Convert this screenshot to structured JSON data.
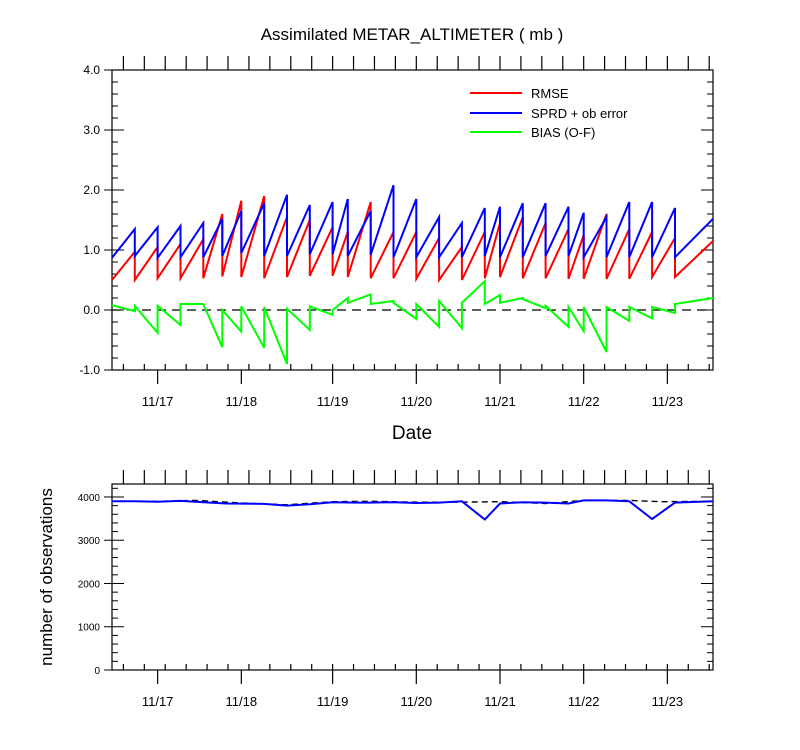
{
  "title": "Assimilated METAR_ALTIMETER ( mb )",
  "chart_data": [
    {
      "type": "line",
      "title": "Assimilated METAR_ALTIMETER ( mb )",
      "xlabel": "Date",
      "ylabel": "",
      "xlim": [
        0,
        79
      ],
      "ylim": [
        -1.0,
        4.0
      ],
      "yticks": [
        -1.0,
        0.0,
        1.0,
        2.0,
        3.0,
        4.0
      ],
      "yticklabels": [
        "-1.0",
        "0.0",
        "1.0",
        "2.0",
        "3.0",
        "4.0"
      ],
      "xticks": [
        6,
        17,
        29,
        40,
        51,
        62,
        73
      ],
      "xticklabels": [
        "11/17",
        "11/18",
        "11/19",
        "11/20",
        "11/21",
        "11/22",
        "11/23"
      ],
      "legend_position": "top-right",
      "zero_line": 0.0,
      "segments": [
        {
          "x": [
            0,
            3
          ],
          "rmse": [
            0.5,
            0.97
          ],
          "sprd": [
            0.87,
            1.35
          ],
          "bias": [
            0.08,
            -0.02
          ]
        },
        {
          "x": [
            3,
            6
          ],
          "rmse": [
            0.5,
            1.05
          ],
          "sprd": [
            0.9,
            1.38
          ],
          "bias": [
            0.07,
            -0.38
          ]
        },
        {
          "x": [
            6,
            9
          ],
          "rmse": [
            0.53,
            1.1
          ],
          "sprd": [
            0.87,
            1.4
          ],
          "bias": [
            0.07,
            -0.25
          ]
        },
        {
          "x": [
            9,
            12
          ],
          "rmse": [
            0.53,
            1.18
          ],
          "sprd": [
            0.88,
            1.45
          ],
          "bias": [
            0.1,
            0.1
          ]
        },
        {
          "x": [
            12,
            14.5
          ],
          "rmse": [
            0.53,
            1.6
          ],
          "sprd": [
            0.88,
            1.52
          ],
          "bias": [
            0.1,
            -0.62
          ]
        },
        {
          "x": [
            14.5,
            17
          ],
          "rmse": [
            0.56,
            1.82
          ],
          "sprd": [
            0.9,
            1.65
          ],
          "bias": [
            0.0,
            -0.36
          ]
        },
        {
          "x": [
            17,
            20
          ],
          "rmse": [
            0.55,
            1.9
          ],
          "sprd": [
            0.95,
            1.78
          ],
          "bias": [
            0.06,
            -0.63
          ]
        },
        {
          "x": [
            20,
            23
          ],
          "rmse": [
            0.53,
            1.55
          ],
          "sprd": [
            0.9,
            1.92
          ],
          "bias": [
            0.05,
            -0.9
          ]
        },
        {
          "x": [
            23,
            26
          ],
          "rmse": [
            0.55,
            1.5
          ],
          "sprd": [
            0.9,
            1.75
          ],
          "bias": [
            0.02,
            -0.33
          ]
        },
        {
          "x": [
            26,
            29
          ],
          "rmse": [
            0.57,
            1.38
          ],
          "sprd": [
            0.93,
            1.8
          ],
          "bias": [
            0.06,
            -0.08
          ]
        },
        {
          "x": [
            29,
            31
          ],
          "rmse": [
            0.57,
            1.3
          ],
          "sprd": [
            0.93,
            1.85
          ],
          "bias": [
            0.0,
            0.2
          ]
        },
        {
          "x": [
            31,
            34
          ],
          "rmse": [
            0.55,
            1.8
          ],
          "sprd": [
            0.9,
            1.65
          ],
          "bias": [
            0.12,
            0.26
          ]
        },
        {
          "x": [
            34,
            37
          ],
          "rmse": [
            0.53,
            1.3
          ],
          "sprd": [
            0.92,
            2.08
          ],
          "bias": [
            0.1,
            0.15
          ]
        },
        {
          "x": [
            37,
            40
          ],
          "rmse": [
            0.53,
            1.3
          ],
          "sprd": [
            0.88,
            1.85
          ],
          "bias": [
            0.12,
            -0.15
          ]
        },
        {
          "x": [
            40,
            43
          ],
          "rmse": [
            0.52,
            1.2
          ],
          "sprd": [
            0.88,
            1.55
          ],
          "bias": [
            0.1,
            -0.28
          ]
        },
        {
          "x": [
            43,
            46
          ],
          "rmse": [
            0.5,
            1.05
          ],
          "sprd": [
            0.88,
            1.45
          ],
          "bias": [
            0.15,
            -0.3
          ]
        },
        {
          "x": [
            46,
            49
          ],
          "rmse": [
            0.5,
            1.3
          ],
          "sprd": [
            0.88,
            1.7
          ],
          "bias": [
            0.12,
            0.48
          ]
        },
        {
          "x": [
            49,
            51
          ],
          "rmse": [
            0.53,
            1.45
          ],
          "sprd": [
            0.9,
            1.72
          ],
          "bias": [
            0.1,
            0.25
          ]
        },
        {
          "x": [
            51,
            54
          ],
          "rmse": [
            0.55,
            1.55
          ],
          "sprd": [
            0.88,
            1.78
          ],
          "bias": [
            0.12,
            0.2
          ]
        },
        {
          "x": [
            54,
            57
          ],
          "rmse": [
            0.53,
            1.45
          ],
          "sprd": [
            0.88,
            1.78
          ],
          "bias": [
            0.18,
            0.03
          ]
        },
        {
          "x": [
            57,
            60
          ],
          "rmse": [
            0.53,
            1.35
          ],
          "sprd": [
            0.9,
            1.72
          ],
          "bias": [
            0.07,
            -0.28
          ]
        },
        {
          "x": [
            60,
            62
          ],
          "rmse": [
            0.52,
            1.25
          ],
          "sprd": [
            0.9,
            1.62
          ],
          "bias": [
            0.05,
            -0.35
          ]
        },
        {
          "x": [
            62,
            65
          ],
          "rmse": [
            0.52,
            1.6
          ],
          "sprd": [
            0.88,
            1.55
          ],
          "bias": [
            0.05,
            -0.7
          ]
        },
        {
          "x": [
            65,
            68
          ],
          "rmse": [
            0.52,
            1.35
          ],
          "sprd": [
            0.88,
            1.8
          ],
          "bias": [
            0.05,
            -0.18
          ]
        },
        {
          "x": [
            68,
            71
          ],
          "rmse": [
            0.52,
            1.3
          ],
          "sprd": [
            0.88,
            1.8
          ],
          "bias": [
            0.05,
            -0.14
          ]
        },
        {
          "x": [
            71,
            74
          ],
          "rmse": [
            0.55,
            1.2
          ],
          "sprd": [
            0.88,
            1.7
          ],
          "bias": [
            0.05,
            -0.05
          ]
        },
        {
          "x": [
            74,
            79
          ],
          "rmse": [
            0.55,
            1.15
          ],
          "sprd": [
            0.88,
            1.52
          ],
          "bias": [
            0.1,
            0.2
          ]
        }
      ],
      "series": [
        {
          "name": "RMSE",
          "color": "#ff0000"
        },
        {
          "name": "SPRD + ob error",
          "color": "#0000ff"
        },
        {
          "name": "BIAS (O-F)",
          "color": "#00ff00"
        }
      ]
    },
    {
      "type": "line",
      "title": "",
      "xlabel": "",
      "ylabel": "number of observations",
      "xlim": [
        0,
        79
      ],
      "ylim": [
        0,
        4300
      ],
      "yticks": [
        0,
        1000,
        2000,
        3000,
        4000
      ],
      "yticklabels": [
        "0",
        "1000",
        "2000",
        "3000",
        "4000"
      ],
      "xticks": [
        6,
        17,
        29,
        40,
        51,
        62,
        73
      ],
      "xticklabels": [
        "11/17",
        "11/18",
        "11/19",
        "11/20",
        "11/21",
        "11/22",
        "11/23"
      ],
      "series": [
        {
          "name": "",
          "color": "#000000",
          "dashed": true,
          "x": [
            0,
            6,
            11,
            17,
            23,
            29,
            34,
            40,
            45,
            51,
            57,
            62,
            68,
            72,
            79
          ],
          "y": [
            3900,
            3900,
            3920,
            3860,
            3820,
            3890,
            3900,
            3880,
            3880,
            3890,
            3850,
            3920,
            3920,
            3890,
            3900
          ]
        },
        {
          "name": "",
          "color": "#0000ff",
          "dashed": false,
          "x": [
            0,
            3,
            6,
            9,
            12,
            15,
            20,
            23,
            26,
            29,
            32,
            34,
            37,
            40,
            43,
            46,
            49,
            51,
            54,
            57,
            60,
            62,
            65,
            68,
            71,
            74,
            79
          ],
          "y": [
            3900,
            3900,
            3890,
            3910,
            3880,
            3850,
            3840,
            3800,
            3830,
            3880,
            3870,
            3870,
            3880,
            3860,
            3870,
            3900,
            3480,
            3850,
            3880,
            3870,
            3850,
            3920,
            3920,
            3900,
            3490,
            3870,
            3900
          ]
        }
      ]
    }
  ]
}
